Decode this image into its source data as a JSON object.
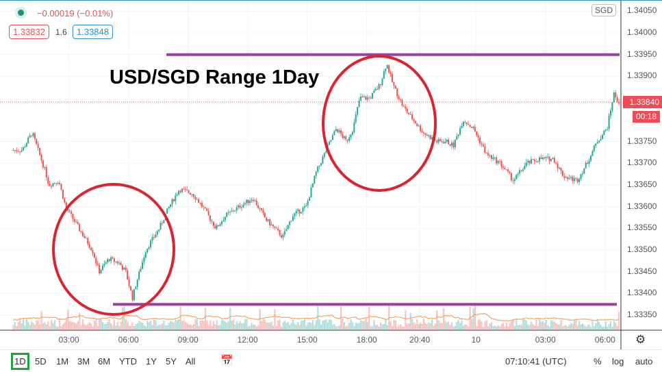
{
  "legend": {
    "change": "−0.00019 (−0.01%)",
    "bid": "1.33832",
    "spread": "1.6",
    "ask": "1.33848"
  },
  "axis": {
    "currency": "SGD",
    "current_price": "1.33840",
    "countdown": "00:18"
  },
  "annotation": {
    "title": "USD/SGD Range 1Day",
    "range_high": 1.3395,
    "range_low": 1.33375
  },
  "colors": {
    "up": "#26a69a",
    "down": "#ef5350",
    "range_line": "#9b3fa6",
    "circle": "#d9252f"
  },
  "toolbar": {
    "ranges": [
      "1D",
      "5D",
      "1M",
      "3M",
      "6M",
      "YTD",
      "1Y",
      "5Y",
      "All"
    ],
    "selected": "1D",
    "time": "07:10:41 (UTC)",
    "percent": "%",
    "log": "log",
    "auto": "auto"
  },
  "chart_data": {
    "type": "candlestick",
    "title": "USD/SGD Range 1Day",
    "ylim": [
      1.3331,
      1.3406
    ],
    "yticks": [
      "1.34050",
      "1.34000",
      "1.33950",
      "1.33900",
      "1.33750",
      "1.33700",
      "1.33650",
      "1.33600",
      "1.33550",
      "1.33500",
      "1.33450",
      "1.33400",
      "1.33350"
    ],
    "ytick_values": [
      1.3405,
      1.34,
      1.3395,
      1.339,
      1.3375,
      1.337,
      1.3365,
      1.336,
      1.3355,
      1.335,
      1.3345,
      1.334,
      1.3335
    ],
    "xticks": [
      {
        "label": "03:00",
        "h": 3
      },
      {
        "label": "06:00",
        "h": 6
      },
      {
        "label": "09:00",
        "h": 9
      },
      {
        "label": "12:00",
        "h": 12
      },
      {
        "label": "15:00",
        "h": 15
      },
      {
        "label": "18:00",
        "h": 18
      },
      {
        "label": "20:40",
        "h": 20.67
      },
      {
        "label": "10",
        "h": 23.5
      },
      {
        "label": "03:00",
        "h": 27
      },
      {
        "label": "06:00",
        "h": 30
      }
    ],
    "xlim_hours": [
      -0.47,
      30.8
    ],
    "price_path": [
      [
        0.64,
        1.3373
      ],
      [
        1.15,
        1.3377
      ],
      [
        1.82,
        1.3368
      ],
      [
        1.99,
        1.3365
      ],
      [
        2.49,
        1.3366
      ],
      [
        2.83,
        1.336
      ],
      [
        3.5,
        1.3355
      ],
      [
        4.18,
        1.335
      ],
      [
        4.52,
        1.3345
      ],
      [
        5.02,
        1.3348
      ],
      [
        5.53,
        1.3347
      ],
      [
        5.86,
        1.3345
      ],
      [
        6.2,
        1.3339
      ],
      [
        6.37,
        1.3342
      ],
      [
        6.87,
        1.335
      ],
      [
        7.55,
        1.3355
      ],
      [
        8.05,
        1.336
      ],
      [
        8.56,
        1.3364
      ],
      [
        9.23,
        1.3363
      ],
      [
        9.73,
        1.336
      ],
      [
        10.41,
        1.3355
      ],
      [
        10.91,
        1.3358
      ],
      [
        11.59,
        1.336
      ],
      [
        12.26,
        1.3362
      ],
      [
        12.93,
        1.3357
      ],
      [
        13.77,
        1.3353
      ],
      [
        14.28,
        1.3358
      ],
      [
        14.95,
        1.336
      ],
      [
        15.46,
        1.3368
      ],
      [
        15.96,
        1.3373
      ],
      [
        16.47,
        1.3378
      ],
      [
        16.97,
        1.3375
      ],
      [
        17.31,
        1.3378
      ],
      [
        17.65,
        1.3385
      ],
      [
        18.15,
        1.3385
      ],
      [
        18.66,
        1.3388
      ],
      [
        19.0,
        1.3393
      ],
      [
        19.33,
        1.3388
      ],
      [
        19.83,
        1.3383
      ],
      [
        20.34,
        1.338
      ],
      [
        20.85,
        1.3377
      ],
      [
        21.52,
        1.3375
      ],
      [
        22.02,
        1.3375
      ],
      [
        22.36,
        1.3374
      ],
      [
        22.86,
        1.338
      ],
      [
        23.37,
        1.3378
      ],
      [
        24.04,
        1.3372
      ],
      [
        24.72,
        1.337
      ],
      [
        25.39,
        1.3366
      ],
      [
        26.06,
        1.337
      ],
      [
        26.73,
        1.3371
      ],
      [
        27.41,
        1.3371
      ],
      [
        27.91,
        1.3367
      ],
      [
        28.59,
        1.3366
      ],
      [
        29.09,
        1.337
      ],
      [
        29.6,
        1.3375
      ],
      [
        30.1,
        1.3378
      ],
      [
        30.44,
        1.3386
      ],
      [
        30.68,
        1.3384
      ]
    ]
  }
}
